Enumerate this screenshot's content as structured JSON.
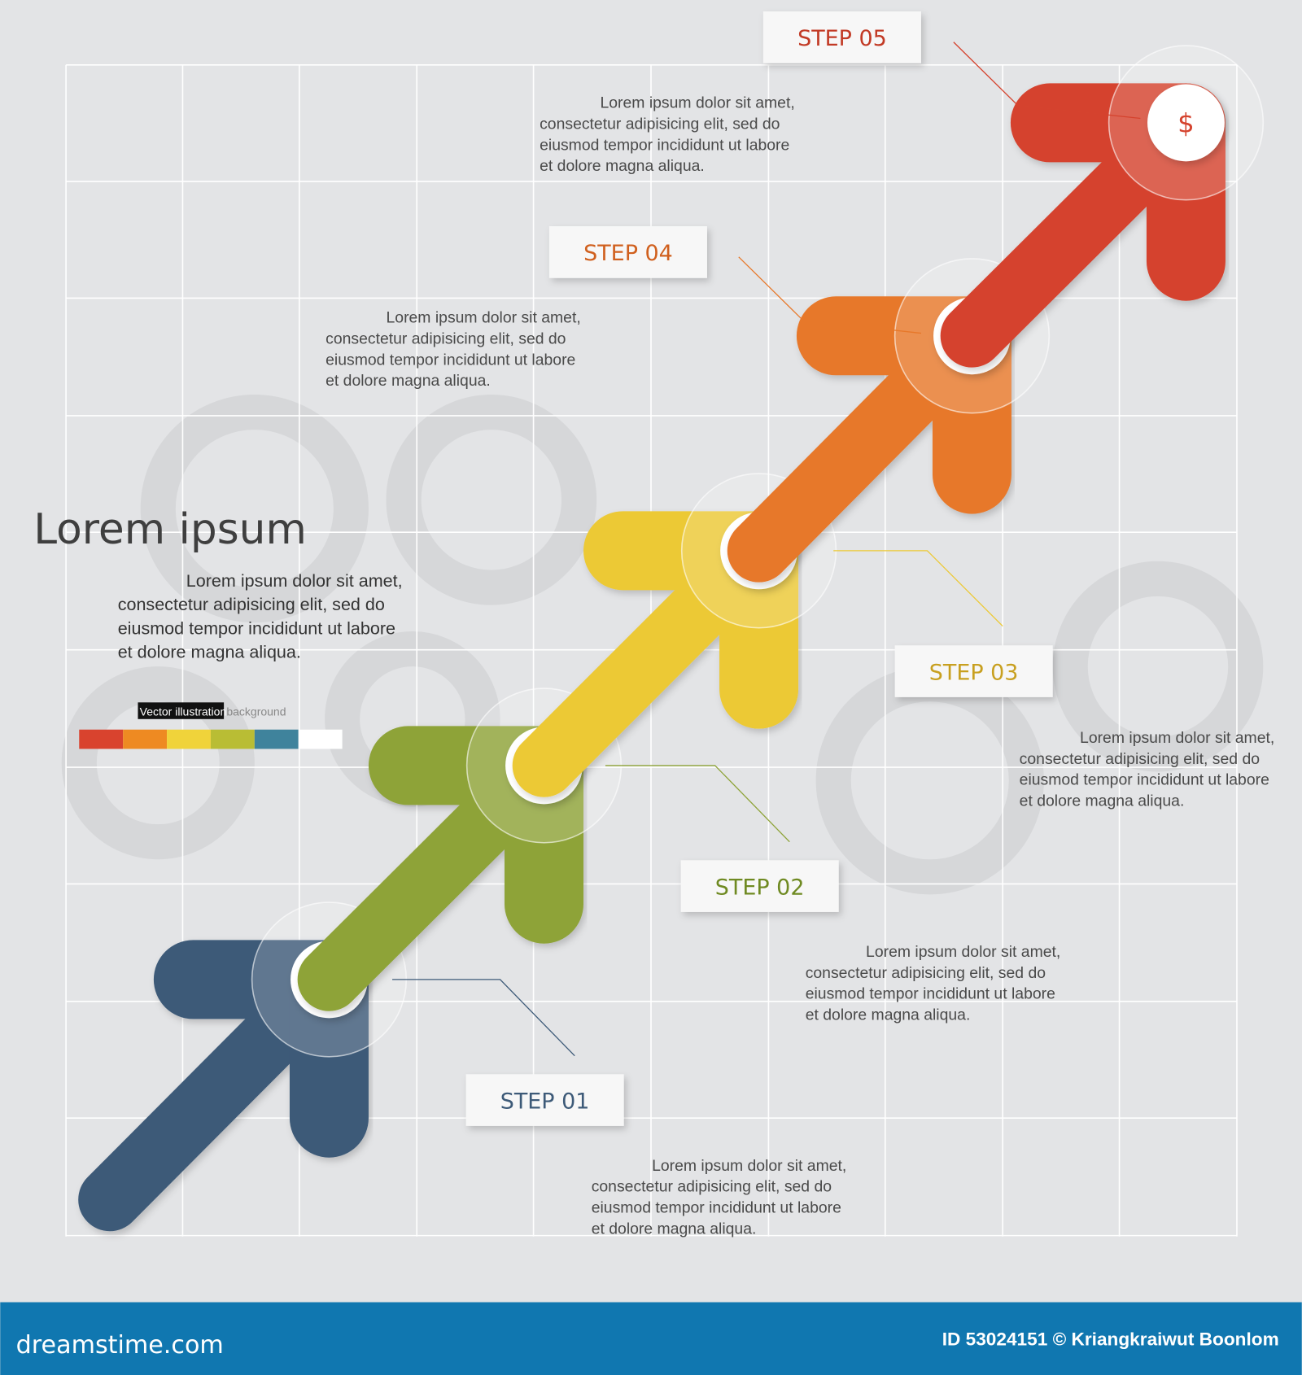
{
  "heading": "Lorem ipsum",
  "intro": [
    "Lorem ipsum dolor sit amet,",
    "consectetur adipisicing elit, sed do",
    "eiusmod tempor incididunt ut labore",
    "et dolore magna aliqua."
  ],
  "legend": {
    "tag": "Vector illustration",
    "suffix": "background",
    "swatches": [
      "#d9432e",
      "#ee8a22",
      "#f0d33a",
      "#b9bd34",
      "#3f839c",
      "#ffffff"
    ]
  },
  "steps": [
    {
      "label": "STEP 01",
      "color": "#3d5a78",
      "text_color": "#3d5a78",
      "icon": "lightbulb-icon",
      "text": [
        "Lorem ipsum dolor sit amet,",
        "consectetur adipisicing elit, sed do",
        "eiusmod tempor incididunt ut labore",
        "et dolore magna aliqua."
      ]
    },
    {
      "label": "STEP 02",
      "color": "#8ea338",
      "text_color": "#6f8a22",
      "icon": "hand-money-icon",
      "text": [
        "Lorem ipsum dolor sit amet,",
        "consectetur adipisicing elit, sed do",
        "eiusmod tempor incididunt ut labore",
        "et dolore magna aliqua."
      ]
    },
    {
      "label": "STEP 03",
      "color": "#ecc935",
      "text_color": "#c8a020",
      "icon": "clock-icon",
      "text": [
        "Lorem ipsum dolor sit amet,",
        "consectetur adipisicing elit, sed do",
        "eiusmod tempor incididunt ut labore",
        "et dolore magna aliqua."
      ]
    },
    {
      "label": "STEP 04",
      "color": "#e7782a",
      "text_color": "#d0601e",
      "icon": "people-chat-icon",
      "text": [
        "Lorem ipsum dolor sit amet,",
        "consectetur adipisicing elit, sed do",
        "eiusmod tempor incididunt ut labore",
        "et dolore magna aliqua."
      ]
    },
    {
      "label": "STEP 05",
      "color": "#d5432e",
      "text_color": "#c23a25",
      "icon": "money-icon",
      "text": [
        "Lorem ipsum dolor sit amet,",
        "consectetur adipisicing elit, sed do",
        "eiusmod tempor incididunt ut labore",
        "et dolore magna aliqua."
      ]
    }
  ],
  "footer": {
    "brand": "dreamstime.com",
    "credit": "ID 53024151 © Kriangkraiwut Boonlom",
    "bg": "#1077b0"
  }
}
